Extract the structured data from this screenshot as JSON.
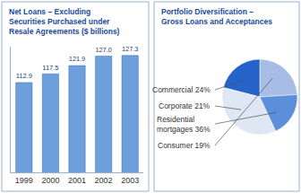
{
  "chart_data": [
    {
      "type": "bar",
      "title": "Net Loans – Excluding Securities Purchased under Resale Agreements ($ billions)",
      "categories": [
        "1999",
        "2000",
        "2001",
        "2002",
        "2003"
      ],
      "values": [
        112.9,
        117.5,
        121.9,
        127.0,
        127.3
      ],
      "value_labels": [
        "112.9",
        "117.5",
        "121.9",
        "127.0",
        "127.3"
      ],
      "data_labels": true,
      "color": "#6d9fdc",
      "ylim": [
        65,
        132
      ],
      "tick_labels": "x",
      "grid": false
    },
    {
      "type": "pie",
      "title": "Portfolio Diversification – Gross Loans and Acceptances",
      "categories": [
        "Commercial",
        "Corporate",
        "Residential mortgages",
        "Consumer"
      ],
      "values": [
        24,
        21,
        36,
        19
      ],
      "value_labels": [
        "Commercial 24%",
        "Corporate 21%",
        "Residential mortgages 36%",
        "Consumer 19%"
      ],
      "data_labels": true,
      "colors": [
        "#a7bde6",
        "#2563c9",
        "#dfe7f5",
        "#5b8fd9"
      ]
    }
  ]
}
